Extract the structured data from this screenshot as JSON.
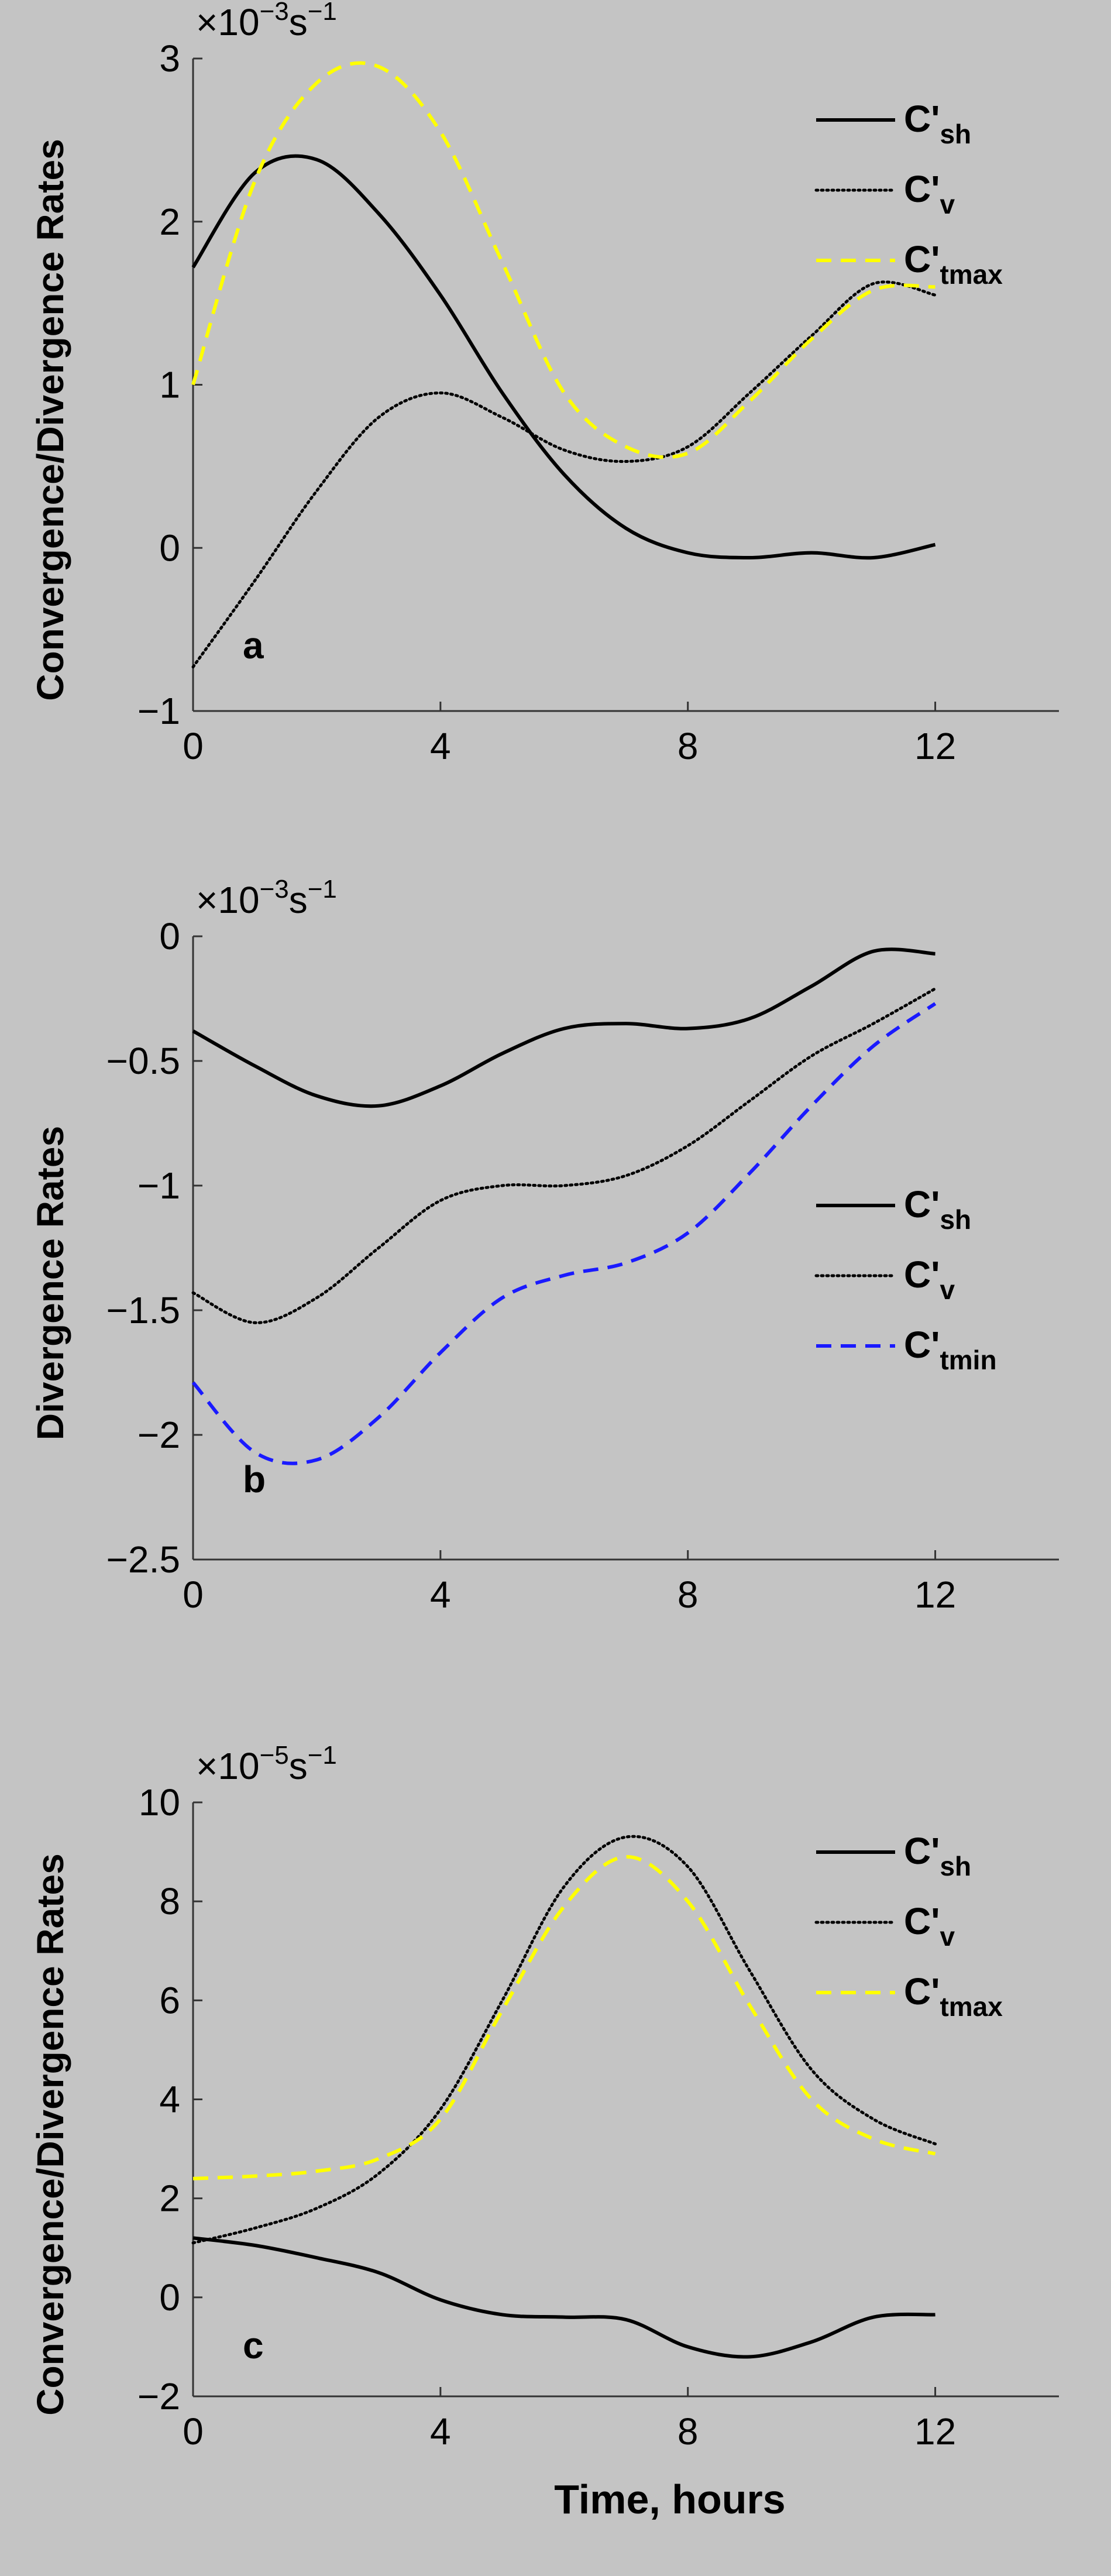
{
  "figure": {
    "xlabel": "Time, hours",
    "x_ticks": [
      "0",
      "4",
      "8",
      "12"
    ]
  },
  "chart_data": [
    {
      "type": "line",
      "panel": "a",
      "ylabel": "Convergence/Divergence Rates",
      "exponent_prefix": "×10",
      "exponent": "−3",
      "exponent_unit": "s",
      "exponent_unit_power": "−1",
      "xlim": [
        0,
        14
      ],
      "ylim": [
        -1,
        3
      ],
      "y_ticks": [
        {
          "value": -1,
          "label": "−1"
        },
        {
          "value": 0,
          "label": "0"
        },
        {
          "value": 1,
          "label": "1"
        },
        {
          "value": 2,
          "label": "2"
        },
        {
          "value": 3,
          "label": "3"
        }
      ],
      "series": [
        {
          "name": "C'",
          "subscript": "sh",
          "color": "#000000",
          "style": "solid",
          "x": [
            0,
            1,
            2,
            3,
            4,
            5,
            6,
            7,
            8,
            9,
            10,
            11,
            12
          ],
          "y": [
            1.72,
            2.3,
            2.38,
            2.05,
            1.55,
            0.95,
            0.45,
            0.12,
            -0.03,
            -0.06,
            -0.03,
            -0.06,
            0.02
          ]
        },
        {
          "name": "C'",
          "subscript": "v",
          "color": "#000000",
          "style": "dotted",
          "x": [
            0,
            1,
            2,
            3,
            4,
            5,
            6,
            7,
            8,
            9,
            10,
            11,
            12
          ],
          "y": [
            -0.73,
            -0.2,
            0.35,
            0.8,
            0.95,
            0.8,
            0.6,
            0.53,
            0.62,
            0.95,
            1.3,
            1.62,
            1.55
          ]
        },
        {
          "name": "C'",
          "subscript": "tmax",
          "color": "#ffff00",
          "style": "dashed",
          "x": [
            0,
            1,
            2,
            3,
            4,
            5,
            6,
            7,
            8,
            9,
            10,
            11,
            12
          ],
          "y": [
            1.0,
            2.25,
            2.85,
            2.95,
            2.55,
            1.75,
            0.95,
            0.62,
            0.58,
            0.9,
            1.28,
            1.58,
            1.6
          ]
        }
      ]
    },
    {
      "type": "line",
      "panel": "b",
      "ylabel": "Divergence Rates",
      "exponent_prefix": "×10",
      "exponent": "−3",
      "exponent_unit": "s",
      "exponent_unit_power": "−1",
      "xlim": [
        0,
        14
      ],
      "ylim": [
        -2.5,
        0
      ],
      "y_ticks": [
        {
          "value": -2.5,
          "label": "−2.5"
        },
        {
          "value": -2,
          "label": "−2"
        },
        {
          "value": -1.5,
          "label": "−1.5"
        },
        {
          "value": -1,
          "label": "−1"
        },
        {
          "value": -0.5,
          "label": "−0.5"
        },
        {
          "value": 0,
          "label": "0"
        }
      ],
      "series": [
        {
          "name": "C'",
          "subscript": "sh",
          "color": "#000000",
          "style": "solid",
          "x": [
            0,
            1,
            2,
            3,
            4,
            5,
            6,
            7,
            8,
            9,
            10,
            11,
            12
          ],
          "y": [
            -0.38,
            -0.52,
            -0.64,
            -0.68,
            -0.6,
            -0.47,
            -0.37,
            -0.35,
            -0.37,
            -0.33,
            -0.2,
            -0.06,
            -0.07
          ]
        },
        {
          "name": "C'",
          "subscript": "v",
          "color": "#000000",
          "style": "dotted",
          "x": [
            0,
            1,
            2,
            3,
            4,
            5,
            6,
            7,
            8,
            9,
            10,
            11,
            12
          ],
          "y": [
            -1.43,
            -1.55,
            -1.45,
            -1.25,
            -1.06,
            -1.0,
            -1.0,
            -0.96,
            -0.84,
            -0.66,
            -0.48,
            -0.35,
            -0.21
          ]
        },
        {
          "name": "C'",
          "subscript": "tmin",
          "color": "#1a1aff",
          "style": "dashed",
          "x": [
            0,
            1,
            2,
            3,
            4,
            5,
            6,
            7,
            8,
            9,
            10,
            11,
            12
          ],
          "y": [
            -1.79,
            -2.07,
            -2.1,
            -1.93,
            -1.67,
            -1.45,
            -1.36,
            -1.31,
            -1.19,
            -0.95,
            -0.68,
            -0.44,
            -0.27
          ]
        }
      ]
    },
    {
      "type": "line",
      "panel": "c",
      "ylabel": "Convergence/Divergence Rates",
      "exponent_prefix": "×10",
      "exponent": "−5",
      "exponent_unit": "s",
      "exponent_unit_power": "−1",
      "xlim": [
        0,
        14
      ],
      "ylim": [
        -2,
        10
      ],
      "y_ticks": [
        {
          "value": -2,
          "label": "−2"
        },
        {
          "value": 0,
          "label": "0"
        },
        {
          "value": 2,
          "label": "2"
        },
        {
          "value": 4,
          "label": "4"
        },
        {
          "value": 6,
          "label": "6"
        },
        {
          "value": 8,
          "label": "8"
        },
        {
          "value": 10,
          "label": "10"
        }
      ],
      "series": [
        {
          "name": "C'",
          "subscript": "sh",
          "color": "#000000",
          "style": "solid",
          "x": [
            0,
            1,
            2,
            3,
            4,
            5,
            6,
            7,
            8,
            9,
            10,
            11,
            12
          ],
          "y": [
            1.2,
            1.05,
            0.8,
            0.5,
            -0.05,
            -0.35,
            -0.4,
            -0.45,
            -1.0,
            -1.2,
            -0.9,
            -0.4,
            -0.35
          ]
        },
        {
          "name": "C'",
          "subscript": "v",
          "color": "#000000",
          "style": "dotted",
          "x": [
            0,
            1,
            2,
            3,
            4,
            5,
            6,
            7,
            8,
            9,
            10,
            11,
            12
          ],
          "y": [
            1.1,
            1.4,
            1.8,
            2.5,
            3.8,
            6.0,
            8.3,
            9.3,
            8.7,
            6.6,
            4.6,
            3.6,
            3.1
          ]
        },
        {
          "name": "C'",
          "subscript": "tmax",
          "color": "#ffff00",
          "style": "dashed",
          "x": [
            0,
            1,
            2,
            3,
            4,
            5,
            6,
            7,
            8,
            9,
            10,
            11,
            12
          ],
          "y": [
            2.4,
            2.45,
            2.55,
            2.8,
            3.6,
            5.8,
            7.9,
            8.9,
            8.0,
            5.9,
            4.0,
            3.2,
            2.9
          ]
        }
      ]
    }
  ]
}
